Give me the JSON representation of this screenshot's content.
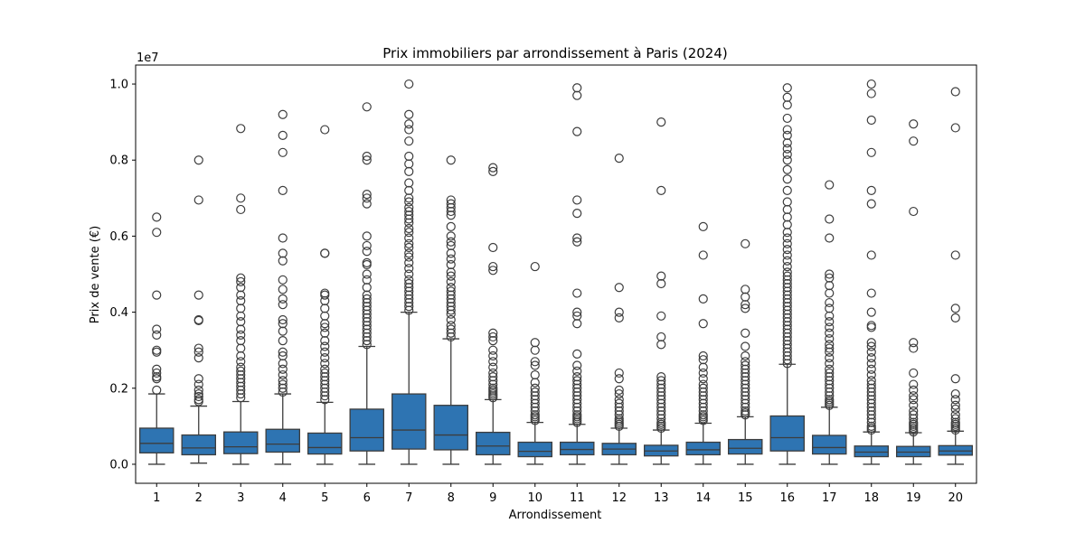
{
  "chart_data": {
    "type": "box",
    "title": "Prix immobiliers par arrondissement à Paris (2024)",
    "xlabel": "Arrondissement",
    "ylabel": "Prix de vente (€)",
    "y_scale_label": "1e7",
    "y_scale": 10000000,
    "ylim": [
      -500000,
      10500000
    ],
    "yticks": [
      0,
      2000000,
      4000000,
      6000000,
      8000000,
      10000000
    ],
    "ytick_labels": [
      "0.0",
      "0.2",
      "0.4",
      "0.6",
      "0.8",
      "1.0"
    ],
    "categories": [
      "1",
      "2",
      "3",
      "4",
      "5",
      "6",
      "7",
      "8",
      "9",
      "10",
      "11",
      "12",
      "13",
      "14",
      "15",
      "16",
      "17",
      "18",
      "19",
      "20"
    ],
    "box_color": "#2e74b2",
    "boxes": [
      {
        "category": "1",
        "whisker_low": 0,
        "q1": 300000,
        "median": 550000,
        "q3": 950000,
        "whisker_high": 1850000,
        "outliers": [
          1950000,
          2250000,
          2300000,
          2400000,
          2500000,
          2950000,
          3000000,
          3400000,
          3550000,
          4450000,
          6100000,
          6500000
        ]
      },
      {
        "category": "2",
        "whisker_low": 30000,
        "q1": 250000,
        "median": 430000,
        "q3": 770000,
        "whisker_high": 1530000,
        "outliers": [
          1650000,
          1700000,
          1780000,
          1850000,
          1950000,
          2100000,
          2250000,
          2800000,
          2950000,
          3050000,
          3780000,
          3800000,
          4450000,
          6950000,
          8000000
        ]
      },
      {
        "category": "3",
        "whisker_low": 0,
        "q1": 280000,
        "median": 460000,
        "q3": 850000,
        "whisker_high": 1650000,
        "outliers": [
          1750000,
          1850000,
          1950000,
          2050000,
          2150000,
          2250000,
          2350000,
          2450000,
          2550000,
          2700000,
          2850000,
          3050000,
          3250000,
          3400000,
          3550000,
          3750000,
          3900000,
          4100000,
          4300000,
          4450000,
          4650000,
          4800000,
          4900000,
          6700000,
          7000000,
          8830000
        ]
      },
      {
        "category": "4",
        "whisker_low": 0,
        "q1": 320000,
        "median": 530000,
        "q3": 920000,
        "whisker_high": 1850000,
        "outliers": [
          1900000,
          2000000,
          2100000,
          2200000,
          2350000,
          2500000,
          2650000,
          2850000,
          2950000,
          3250000,
          3500000,
          3700000,
          3800000,
          4200000,
          4350000,
          4600000,
          4850000,
          5350000,
          5550000,
          5950000,
          7200000,
          8200000,
          8650000,
          9200000
        ]
      },
      {
        "category": "5",
        "whisker_low": 0,
        "q1": 270000,
        "median": 440000,
        "q3": 820000,
        "whisker_high": 1630000,
        "outliers": [
          1700000,
          1800000,
          1900000,
          2000000,
          2100000,
          2200000,
          2300000,
          2400000,
          2500000,
          2650000,
          2800000,
          2950000,
          3100000,
          3250000,
          3450000,
          3600000,
          3700000,
          3900000,
          4100000,
          4300000,
          4450000,
          4500000,
          5550000,
          5550000,
          8800000
        ]
      },
      {
        "category": "6",
        "whisker_low": 0,
        "q1": 350000,
        "median": 700000,
        "q3": 1450000,
        "whisker_high": 3100000,
        "outliers": [
          3150000,
          3250000,
          3350000,
          3450000,
          3550000,
          3650000,
          3750000,
          3850000,
          3950000,
          4050000,
          4150000,
          4250000,
          4350000,
          4450000,
          4650000,
          4850000,
          5000000,
          5250000,
          5300000,
          5600000,
          5750000,
          6000000,
          6850000,
          7000000,
          7100000,
          8000000,
          8100000,
          9400000
        ]
      },
      {
        "category": "7",
        "whisker_low": 0,
        "q1": 400000,
        "median": 900000,
        "q3": 1850000,
        "whisker_high": 4000000,
        "outliers": [
          4050000,
          4150000,
          4250000,
          4350000,
          4450000,
          4550000,
          4650000,
          4750000,
          4850000,
          5000000,
          5150000,
          5300000,
          5450000,
          5550000,
          5700000,
          5800000,
          5950000,
          6100000,
          6200000,
          6350000,
          6450000,
          6550000,
          6650000,
          6750000,
          6900000,
          7000000,
          7200000,
          7400000,
          7700000,
          7900000,
          8100000,
          8500000,
          8800000,
          8950000,
          9200000,
          10000000
        ]
      },
      {
        "category": "8",
        "whisker_low": 0,
        "q1": 380000,
        "median": 770000,
        "q3": 1550000,
        "whisker_high": 3300000,
        "outliers": [
          3350000,
          3450000,
          3550000,
          3650000,
          3800000,
          3950000,
          4050000,
          4150000,
          4250000,
          4350000,
          4450000,
          4550000,
          4650000,
          4800000,
          4950000,
          5050000,
          5250000,
          5400000,
          5550000,
          5750000,
          5850000,
          6000000,
          6250000,
          6550000,
          6650000,
          6750000,
          6850000,
          6950000,
          8000000
        ]
      },
      {
        "category": "9",
        "whisker_low": 0,
        "q1": 250000,
        "median": 480000,
        "q3": 840000,
        "whisker_high": 1700000,
        "outliers": [
          1750000,
          1800000,
          1850000,
          1900000,
          1950000,
          2000000,
          2100000,
          2200000,
          2300000,
          2400000,
          2550000,
          2700000,
          2850000,
          3000000,
          3250000,
          3350000,
          3450000,
          5100000,
          5200000,
          5700000,
          7700000,
          7800000
        ]
      },
      {
        "category": "10",
        "whisker_low": 0,
        "q1": 200000,
        "median": 340000,
        "q3": 580000,
        "whisker_high": 1100000,
        "outliers": [
          1150000,
          1200000,
          1250000,
          1300000,
          1400000,
          1500000,
          1600000,
          1700000,
          1800000,
          1900000,
          2000000,
          2150000,
          2350000,
          2600000,
          2700000,
          3000000,
          3200000,
          5200000
        ]
      },
      {
        "category": "11",
        "whisker_low": 0,
        "q1": 250000,
        "median": 390000,
        "q3": 580000,
        "whisker_high": 1050000,
        "outliers": [
          1100000,
          1150000,
          1200000,
          1250000,
          1300000,
          1400000,
          1500000,
          1600000,
          1700000,
          1800000,
          1900000,
          2000000,
          2100000,
          2200000,
          2300000,
          2450000,
          2600000,
          2900000,
          3700000,
          3900000,
          4000000,
          4500000,
          5850000,
          5950000,
          6600000,
          6950000,
          8750000,
          9700000,
          9900000
        ]
      },
      {
        "category": "12",
        "whisker_low": 0,
        "q1": 250000,
        "median": 400000,
        "q3": 550000,
        "whisker_high": 950000,
        "outliers": [
          1000000,
          1050000,
          1100000,
          1150000,
          1200000,
          1300000,
          1400000,
          1500000,
          1600000,
          1700000,
          1850000,
          1950000,
          2250000,
          2400000,
          3850000,
          4000000,
          4650000,
          8050000
        ]
      },
      {
        "category": "13",
        "whisker_low": 0,
        "q1": 220000,
        "median": 350000,
        "q3": 500000,
        "whisker_high": 900000,
        "outliers": [
          950000,
          1000000,
          1050000,
          1100000,
          1200000,
          1300000,
          1400000,
          1500000,
          1600000,
          1700000,
          1800000,
          1900000,
          2000000,
          2100000,
          2200000,
          2300000,
          3150000,
          3350000,
          3900000,
          4750000,
          4950000,
          7200000,
          9000000
        ]
      },
      {
        "category": "14",
        "whisker_low": 0,
        "q1": 250000,
        "median": 380000,
        "q3": 580000,
        "whisker_high": 1080000,
        "outliers": [
          1150000,
          1200000,
          1250000,
          1300000,
          1400000,
          1500000,
          1600000,
          1700000,
          1800000,
          1900000,
          2000000,
          2100000,
          2250000,
          2400000,
          2550000,
          2750000,
          2850000,
          3700000,
          4350000,
          5500000,
          6250000
        ]
      },
      {
        "category": "15",
        "whisker_low": 0,
        "q1": 270000,
        "median": 420000,
        "q3": 650000,
        "whisker_high": 1250000,
        "outliers": [
          1300000,
          1350000,
          1400000,
          1500000,
          1600000,
          1700000,
          1800000,
          1900000,
          2000000,
          2100000,
          2200000,
          2300000,
          2400000,
          2500000,
          2600000,
          2700000,
          2850000,
          3100000,
          3450000,
          4100000,
          4200000,
          4400000,
          4600000,
          5800000
        ]
      },
      {
        "category": "16",
        "whisker_low": 0,
        "q1": 350000,
        "median": 700000,
        "q3": 1270000,
        "whisker_high": 2630000,
        "outliers": [
          2650000,
          2750000,
          2850000,
          2950000,
          3050000,
          3150000,
          3250000,
          3350000,
          3450000,
          3550000,
          3650000,
          3750000,
          3850000,
          3950000,
          4050000,
          4150000,
          4250000,
          4350000,
          4450000,
          4550000,
          4650000,
          4750000,
          4850000,
          4950000,
          5050000,
          5200000,
          5350000,
          5500000,
          5650000,
          5800000,
          5950000,
          6100000,
          6300000,
          6500000,
          6700000,
          6900000,
          7200000,
          7500000,
          7750000,
          8000000,
          8150000,
          8300000,
          8450000,
          8650000,
          8800000,
          9100000,
          9450000,
          9650000,
          9900000
        ]
      },
      {
        "category": "17",
        "whisker_low": 0,
        "q1": 270000,
        "median": 440000,
        "q3": 760000,
        "whisker_high": 1500000,
        "outliers": [
          1550000,
          1600000,
          1650000,
          1700000,
          1800000,
          1900000,
          2000000,
          2100000,
          2200000,
          2300000,
          2400000,
          2500000,
          2650000,
          2800000,
          2950000,
          3050000,
          3150000,
          3300000,
          3450000,
          3600000,
          3750000,
          3900000,
          4100000,
          4250000,
          4500000,
          4700000,
          4900000,
          5000000,
          5950000,
          6450000,
          7350000
        ]
      },
      {
        "category": "18",
        "whisker_low": 0,
        "q1": 200000,
        "median": 320000,
        "q3": 480000,
        "whisker_high": 850000,
        "outliers": [
          900000,
          950000,
          1000000,
          1100000,
          1200000,
          1300000,
          1400000,
          1500000,
          1600000,
          1700000,
          1800000,
          1900000,
          2000000,
          2100000,
          2200000,
          2350000,
          2500000,
          2650000,
          2800000,
          2950000,
          3100000,
          3200000,
          3600000,
          3650000,
          4000000,
          4500000,
          5500000,
          6850000,
          7200000,
          8200000,
          9050000,
          9750000,
          10000000
        ]
      },
      {
        "category": "19",
        "whisker_low": 0,
        "q1": 200000,
        "median": 320000,
        "q3": 470000,
        "whisker_high": 830000,
        "outliers": [
          850000,
          900000,
          950000,
          1000000,
          1050000,
          1100000,
          1200000,
          1300000,
          1400000,
          1550000,
          1700000,
          1800000,
          1950000,
          2100000,
          2400000,
          3050000,
          3200000,
          6650000,
          8500000,
          8950000
        ]
      },
      {
        "category": "20",
        "whisker_low": 0,
        "q1": 240000,
        "median": 350000,
        "q3": 490000,
        "whisker_high": 870000,
        "outliers": [
          900000,
          950000,
          1000000,
          1050000,
          1100000,
          1200000,
          1300000,
          1450000,
          1550000,
          1700000,
          1850000,
          2250000,
          3850000,
          4100000,
          5500000,
          8850000,
          9800000
        ]
      }
    ]
  }
}
